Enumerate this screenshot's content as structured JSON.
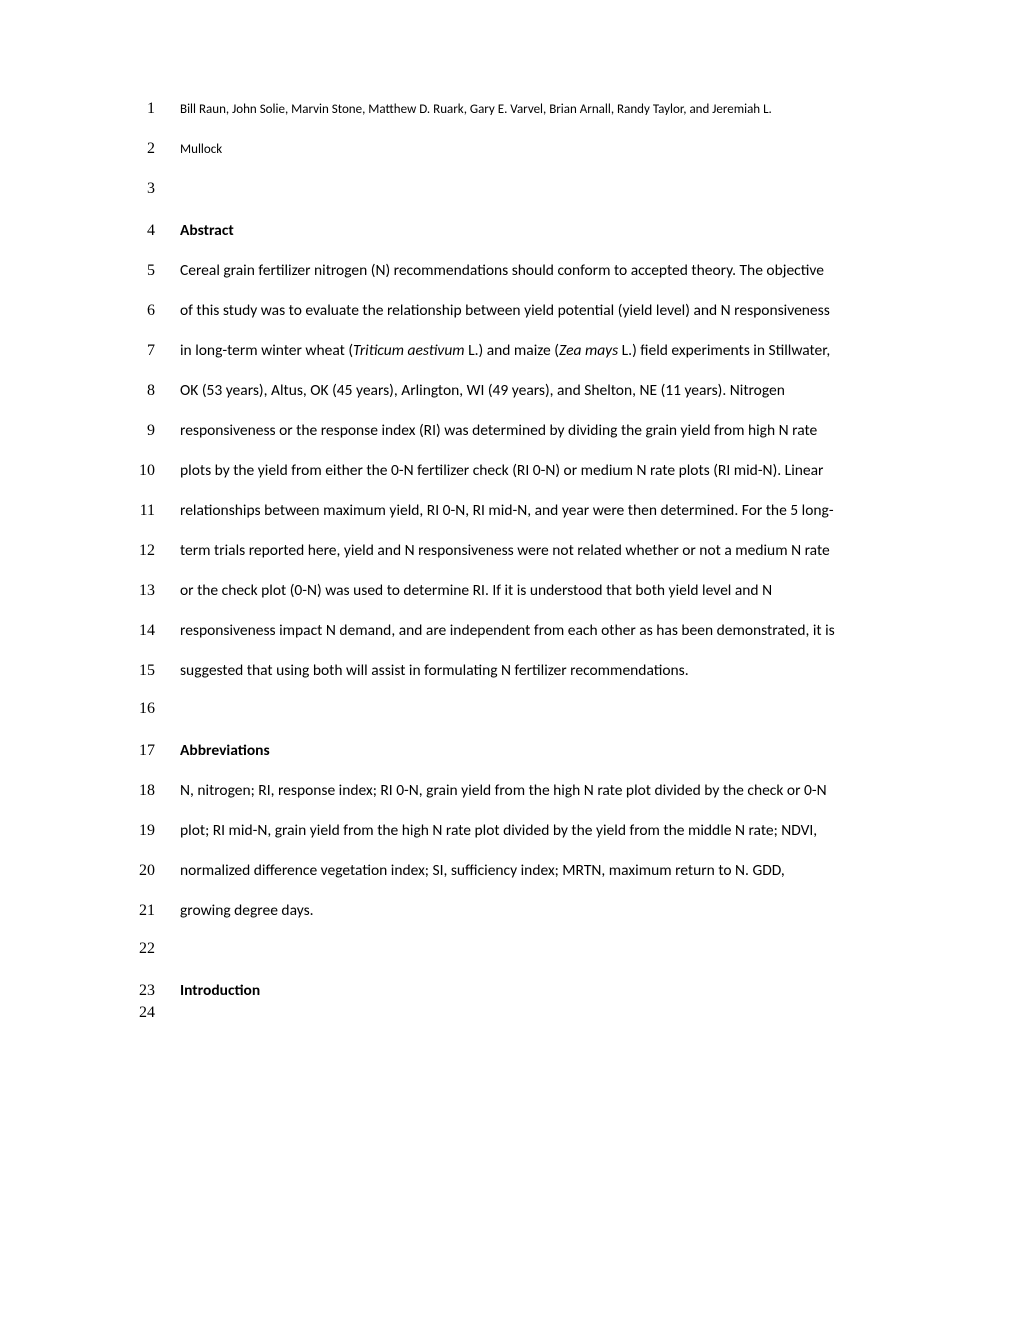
{
  "lines": [
    {
      "num": "1",
      "class": "small-text",
      "text": "Bill Raun, John Solie, Marvin Stone, Matthew D. Ruark, Gary E. Varvel, Brian Arnall, Randy Taylor, and Jeremiah L."
    },
    {
      "num": "2",
      "class": "small-text",
      "text": "Mullock"
    },
    {
      "num": "3",
      "text": ""
    },
    {
      "num": "4",
      "class": "bold",
      "text": "Abstract"
    },
    {
      "num": "5",
      "text": "Cereal grain fertilizer nitrogen (N) recommendations should conform to accepted theory.  The objective"
    },
    {
      "num": "6",
      "text": "of this study was to evaluate the relationship between yield potential (yield level) and N responsiveness"
    },
    {
      "num": "7",
      "html": "in long-term winter wheat (<span class=\"italic\">Triticum aestivum</span> L.) and maize (<span class=\"italic\">Zea mays</span> L.) field experiments in Stillwater,"
    },
    {
      "num": "8",
      "text": "OK (53 years), Altus, OK (45 years), Arlington, WI (49 years), and Shelton, NE (11 years).  Nitrogen"
    },
    {
      "num": "9",
      "text": "responsiveness or the response index (RI) was determined by dividing the grain yield from high N rate"
    },
    {
      "num": "10",
      "text": "plots by the yield from either the 0-N fertilizer check (RI 0-N) or medium N rate plots (RI mid-N).    Linear"
    },
    {
      "num": "11",
      "text": "relationships between maximum yield, RI 0-N, RI mid-N, and year were then determined.  For the 5 long-"
    },
    {
      "num": "12",
      "text": "term trials reported here, yield and N responsiveness were not related whether or not a medium N rate"
    },
    {
      "num": "13",
      "text": "or the check plot (0-N) was used to determine RI.  If it is understood that both yield level and N"
    },
    {
      "num": "14",
      "text": "responsiveness impact N demand, and are independent from each other as has been demonstrated, it is"
    },
    {
      "num": "15",
      "text": "suggested that using  both will assist in  formulating  N fertilizer recommendations."
    },
    {
      "num": "16",
      "text": ""
    },
    {
      "num": "17",
      "class": "bold",
      "text": "Abbreviations"
    },
    {
      "num": "18",
      "text": "N, nitrogen; RI, response index; RI 0-N, grain yield from the high N rate plot divided by the check or 0-N"
    },
    {
      "num": "19",
      "text": "plot; RI mid-N, grain yield from the high N rate plot divided by the yield from the middle N rate; NDVI,"
    },
    {
      "num": "20",
      "text": "normalized difference vegetation index; SI, sufficiency index; MRTN, maximum return to N. GDD,"
    },
    {
      "num": "21",
      "text": "growing degree days."
    },
    {
      "num": "22",
      "text": ""
    },
    {
      "num": "23",
      "class": "bold",
      "tight": true,
      "text": "Introduction"
    },
    {
      "num": "24",
      "text": ""
    }
  ]
}
